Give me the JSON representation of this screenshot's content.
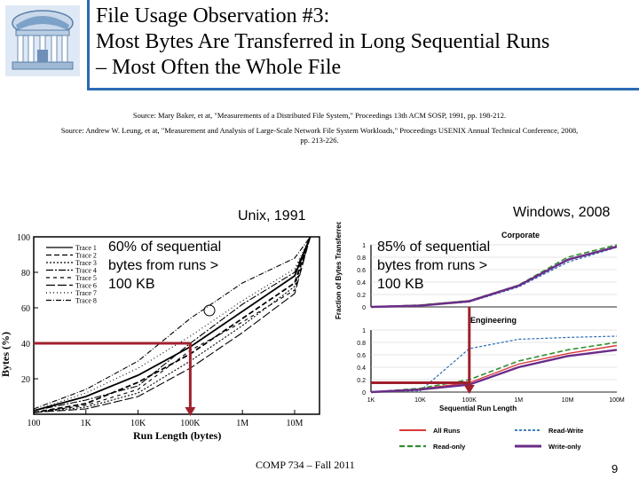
{
  "slide": {
    "title_line1": "File Usage Observation #3:",
    "title_line2": "Most Bytes Are Transferred in Long Sequential Runs",
    "title_line3": "– Most Often the Whole File",
    "source1": "Source: Mary Baker, et at, \"Measurements of a Distributed File System,\" Proceedings 13th ACM SOSP, 1991, pp. 198-212.",
    "source2_line1": "Source: Andrew W. Leung, et at, \"Measurement and Analysis of Large-Scale Network File System Workloads,\" Proceedings USENIX Annual Technical Conference, 2008,",
    "source2_line2": "pp. 213-226.",
    "unix_label": "Unix, 1991",
    "windows_label": "Windows, 2008",
    "unix_annotation": [
      "60% of sequential",
      "bytes from runs >",
      "100 KB"
    ],
    "windows_annotation": [
      "85% of sequential",
      "bytes from runs >",
      "100 KB"
    ],
    "footer": "COMP 734 – Fall 2011",
    "page_number": "9",
    "colors": {
      "title_rule": "#2a6bb3",
      "highlight_arrow": "#a0202c"
    }
  },
  "chart_data": [
    {
      "type": "line",
      "xlabel": "Run Length (bytes)",
      "ylabel": "Bytes (%)",
      "x_ticks": [
        "100",
        "1K",
        "10K",
        "100K",
        "1M",
        "10M"
      ],
      "y_ticks": [
        "20",
        "40",
        "60",
        "80",
        "100"
      ],
      "xscale": "log",
      "ylim": [
        0,
        100
      ],
      "legend_position": "top-left",
      "series": [
        {
          "name": "Trace 1",
          "x": [
            100,
            1000,
            10000,
            100000,
            1000000,
            10000000,
            20000000
          ],
          "y": [
            2,
            10,
            22,
            38,
            58,
            78,
            100
          ]
        },
        {
          "name": "Trace 2",
          "x": [
            100,
            1000,
            10000,
            100000,
            1000000,
            10000000,
            20000000
          ],
          "y": [
            1,
            6,
            18,
            34,
            54,
            74,
            100
          ]
        },
        {
          "name": "Trace 3",
          "x": [
            100,
            1000,
            10000,
            100000,
            1000000,
            10000000,
            20000000
          ],
          "y": [
            1,
            4,
            12,
            30,
            50,
            72,
            100
          ]
        },
        {
          "name": "Trace 4",
          "x": [
            100,
            1000,
            10000,
            100000,
            1000000,
            10000000,
            20000000
          ],
          "y": [
            2,
            8,
            16,
            40,
            62,
            80,
            100
          ]
        },
        {
          "name": "Trace 5",
          "x": [
            100,
            1000,
            10000,
            100000,
            1000000,
            10000000,
            20000000
          ],
          "y": [
            1,
            5,
            14,
            36,
            52,
            70,
            100
          ]
        },
        {
          "name": "Trace 6",
          "x": [
            100,
            1000,
            10000,
            100000,
            1000000,
            10000000,
            20000000
          ],
          "y": [
            1,
            3,
            10,
            26,
            46,
            68,
            100
          ]
        },
        {
          "name": "Trace 7",
          "x": [
            100,
            1000,
            10000,
            100000,
            1000000,
            10000000,
            20000000
          ],
          "y": [
            2,
            12,
            26,
            44,
            64,
            82,
            100
          ]
        },
        {
          "name": "Trace 8",
          "x": [
            100,
            1000,
            10000,
            100000,
            1000000,
            10000000,
            20000000
          ],
          "y": [
            3,
            14,
            30,
            54,
            74,
            88,
            100
          ]
        }
      ],
      "highlight": {
        "x": 100000,
        "y": 40
      }
    },
    {
      "type": "line",
      "title": "Corporate",
      "ylabel": "Fraction of Bytes Transferred",
      "y_ticks": [
        "0",
        "0.2",
        "0.4",
        "0.6",
        "0.8",
        "1"
      ],
      "xscale": "log",
      "ylim": [
        0,
        1
      ],
      "series": [
        {
          "name": "All Runs",
          "x": [
            1000,
            10000,
            100000,
            1000000,
            10000000,
            100000000
          ],
          "y": [
            0,
            0.03,
            0.1,
            0.35,
            0.75,
            0.98
          ]
        },
        {
          "name": "Read-Write",
          "x": [
            1000,
            10000,
            100000,
            1000000,
            10000000,
            100000000
          ],
          "y": [
            0,
            0.02,
            0.08,
            0.32,
            0.72,
            0.96
          ]
        },
        {
          "name": "Read-only",
          "x": [
            1000,
            10000,
            100000,
            1000000,
            10000000,
            100000000
          ],
          "y": [
            0,
            0.03,
            0.1,
            0.35,
            0.8,
            1.0
          ]
        },
        {
          "name": "Write-only",
          "x": [
            1000,
            10000,
            100000,
            1000000,
            10000000,
            100000000
          ],
          "y": [
            0,
            0.02,
            0.09,
            0.34,
            0.76,
            0.97
          ]
        }
      ]
    },
    {
      "type": "line",
      "title": "Engineering",
      "xlabel": "Sequential Run Length",
      "y_ticks": [
        "0",
        "0.2",
        "0.4",
        "0.6",
        "0.8",
        "1"
      ],
      "x_ticks": [
        "1K",
        "10K",
        "100K",
        "1M",
        "10M",
        "100M"
      ],
      "xscale": "log",
      "ylim": [
        0,
        1
      ],
      "series": [
        {
          "name": "All Runs",
          "x": [
            1000,
            10000,
            100000,
            1000000,
            10000000,
            100000000
          ],
          "y": [
            0,
            0.05,
            0.15,
            0.45,
            0.62,
            0.75
          ]
        },
        {
          "name": "Read-Write",
          "x": [
            1000,
            10000,
            100000,
            1000000,
            10000000,
            100000000
          ],
          "y": [
            0,
            0.02,
            0.7,
            0.85,
            0.88,
            0.9
          ]
        },
        {
          "name": "Read-only",
          "x": [
            1000,
            10000,
            100000,
            1000000,
            10000000,
            100000000
          ],
          "y": [
            0,
            0.06,
            0.2,
            0.5,
            0.68,
            0.8
          ]
        },
        {
          "name": "Write-only",
          "x": [
            1000,
            10000,
            100000,
            1000000,
            10000000,
            100000000
          ],
          "y": [
            0,
            0.04,
            0.12,
            0.4,
            0.58,
            0.68
          ]
        }
      ],
      "legend_position": "bottom",
      "highlight": {
        "x": 100000,
        "y": 0.15
      }
    }
  ]
}
